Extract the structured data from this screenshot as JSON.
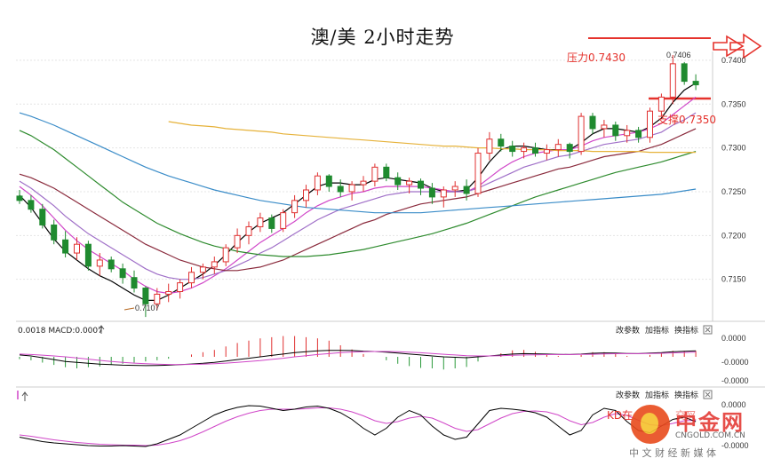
{
  "chart_data": {
    "type": "candlestick",
    "title": "澳/美 2小时走势",
    "price_axis": {
      "ticks": [
        "0.7400",
        "0.7350",
        "0.7300",
        "0.7250",
        "0.7200",
        "0.7150"
      ],
      "range": [
        0.7095,
        0.7415
      ]
    },
    "annotations": {
      "resistance_label": "压力0.7430",
      "support_label": "支撑0.7350",
      "high_label": "0.7406",
      "low_label": "0.7107"
    },
    "candles": [
      [
        0.7245,
        0.7252,
        0.7236,
        0.724
      ],
      [
        0.724,
        0.7246,
        0.7226,
        0.723
      ],
      [
        0.723,
        0.7236,
        0.7208,
        0.7212
      ],
      [
        0.7212,
        0.7218,
        0.719,
        0.7195
      ],
      [
        0.7195,
        0.7205,
        0.7175,
        0.718
      ],
      [
        0.718,
        0.7198,
        0.7172,
        0.719
      ],
      [
        0.719,
        0.7194,
        0.716,
        0.7165
      ],
      [
        0.7165,
        0.718,
        0.7154,
        0.7172
      ],
      [
        0.7172,
        0.7176,
        0.7158,
        0.7162
      ],
      [
        0.7162,
        0.7168,
        0.7145,
        0.7152
      ],
      [
        0.7152,
        0.716,
        0.7135,
        0.714
      ],
      [
        0.714,
        0.7142,
        0.7107,
        0.7122
      ],
      [
        0.7122,
        0.714,
        0.7115,
        0.7133
      ],
      [
        0.7133,
        0.7145,
        0.7124,
        0.7136
      ],
      [
        0.7136,
        0.715,
        0.7128,
        0.7146
      ],
      [
        0.7146,
        0.7164,
        0.714,
        0.7158
      ],
      [
        0.7158,
        0.7168,
        0.715,
        0.7164
      ],
      [
        0.7164,
        0.7176,
        0.7156,
        0.717
      ],
      [
        0.717,
        0.719,
        0.7165,
        0.7186
      ],
      [
        0.7186,
        0.7208,
        0.718,
        0.72
      ],
      [
        0.72,
        0.7216,
        0.719,
        0.721
      ],
      [
        0.721,
        0.7226,
        0.7204,
        0.722
      ],
      [
        0.722,
        0.7224,
        0.7203,
        0.7208
      ],
      [
        0.7208,
        0.723,
        0.7204,
        0.7226
      ],
      [
        0.7226,
        0.7246,
        0.722,
        0.724
      ],
      [
        0.724,
        0.7258,
        0.7232,
        0.7252
      ],
      [
        0.7252,
        0.7272,
        0.7246,
        0.7268
      ],
      [
        0.7268,
        0.727,
        0.725,
        0.7256
      ],
      [
        0.7256,
        0.7264,
        0.7244,
        0.725
      ],
      [
        0.725,
        0.7262,
        0.724,
        0.7258
      ],
      [
        0.7258,
        0.7268,
        0.725,
        0.7262
      ],
      [
        0.7262,
        0.7282,
        0.7256,
        0.7278
      ],
      [
        0.7278,
        0.7282,
        0.7262,
        0.7266
      ],
      [
        0.7266,
        0.7272,
        0.7252,
        0.7258
      ],
      [
        0.7258,
        0.7266,
        0.7248,
        0.7262
      ],
      [
        0.7262,
        0.7265,
        0.7246,
        0.7254
      ],
      [
        0.7254,
        0.726,
        0.7236,
        0.7244
      ],
      [
        0.7244,
        0.7256,
        0.7232,
        0.7252
      ],
      [
        0.7252,
        0.7262,
        0.7244,
        0.7256
      ],
      [
        0.7256,
        0.7264,
        0.724,
        0.7248
      ],
      [
        0.7248,
        0.73,
        0.7244,
        0.7294
      ],
      [
        0.7294,
        0.7318,
        0.7286,
        0.731
      ],
      [
        0.731,
        0.7316,
        0.7296,
        0.7302
      ],
      [
        0.7302,
        0.7308,
        0.729,
        0.7296
      ],
      [
        0.7296,
        0.7306,
        0.7288,
        0.73
      ],
      [
        0.73,
        0.7306,
        0.729,
        0.7294
      ],
      [
        0.7294,
        0.7304,
        0.7286,
        0.7298
      ],
      [
        0.7298,
        0.731,
        0.729,
        0.7304
      ],
      [
        0.7304,
        0.7306,
        0.7288,
        0.7296
      ],
      [
        0.7296,
        0.734,
        0.7292,
        0.7336
      ],
      [
        0.7336,
        0.734,
        0.7316,
        0.7322
      ],
      [
        0.7322,
        0.7332,
        0.7312,
        0.7326
      ],
      [
        0.7326,
        0.733,
        0.7308,
        0.7314
      ],
      [
        0.7314,
        0.7326,
        0.7306,
        0.732
      ],
      [
        0.732,
        0.7324,
        0.7306,
        0.7312
      ],
      [
        0.7312,
        0.7346,
        0.7306,
        0.7342
      ],
      [
        0.7342,
        0.7362,
        0.7336,
        0.7358
      ],
      [
        0.7358,
        0.7406,
        0.735,
        0.7396
      ],
      [
        0.7396,
        0.7398,
        0.7372,
        0.7376
      ],
      [
        0.7376,
        0.7384,
        0.7366,
        0.7372
      ]
    ],
    "ma_series": [
      {
        "color": "#000000",
        "values": [
          0.7246,
          0.7232,
          0.7214,
          0.7196,
          0.7182,
          0.7172,
          0.7162,
          0.7154,
          0.7148,
          0.714,
          0.7132,
          0.7126,
          0.7126,
          0.7132,
          0.714,
          0.7148,
          0.7156,
          0.7166,
          0.7178,
          0.7192,
          0.7204,
          0.7214,
          0.722,
          0.7226,
          0.7236,
          0.7246,
          0.7256,
          0.726,
          0.726,
          0.7258,
          0.7258,
          0.7264,
          0.7266,
          0.7264,
          0.7262,
          0.726,
          0.7254,
          0.725,
          0.725,
          0.7252,
          0.7266,
          0.7284,
          0.7298,
          0.7302,
          0.7302,
          0.73,
          0.7298,
          0.7298,
          0.7298,
          0.7306,
          0.7316,
          0.7322,
          0.7322,
          0.732,
          0.7318,
          0.7324,
          0.7334,
          0.7352,
          0.7366,
          0.7374
        ]
      },
      {
        "color": "#d046c8",
        "values": [
          0.7256,
          0.7246,
          0.7234,
          0.722,
          0.7206,
          0.7194,
          0.7184,
          0.7176,
          0.7168,
          0.716,
          0.715,
          0.7142,
          0.7136,
          0.7134,
          0.7136,
          0.714,
          0.7146,
          0.7154,
          0.7162,
          0.7172,
          0.7182,
          0.7192,
          0.72,
          0.7208,
          0.7216,
          0.7226,
          0.7234,
          0.724,
          0.7244,
          0.7248,
          0.725,
          0.7254,
          0.7256,
          0.7256,
          0.7256,
          0.7256,
          0.7254,
          0.7252,
          0.725,
          0.725,
          0.7256,
          0.7266,
          0.7276,
          0.7284,
          0.729,
          0.7294,
          0.7296,
          0.7298,
          0.7298,
          0.7302,
          0.7308,
          0.7312,
          0.7314,
          0.7316,
          0.7318,
          0.7322,
          0.7328,
          0.7338,
          0.7348,
          0.7358
        ]
      },
      {
        "color": "#a070c8",
        "values": [
          0.7262,
          0.7254,
          0.7244,
          0.7234,
          0.7222,
          0.7212,
          0.7202,
          0.7194,
          0.7186,
          0.7178,
          0.717,
          0.7162,
          0.7156,
          0.7152,
          0.715,
          0.715,
          0.7152,
          0.7156,
          0.716,
          0.7166,
          0.7172,
          0.718,
          0.7186,
          0.7194,
          0.7202,
          0.721,
          0.7218,
          0.7224,
          0.723,
          0.7234,
          0.7238,
          0.7242,
          0.7246,
          0.7248,
          0.725,
          0.725,
          0.725,
          0.725,
          0.725,
          0.725,
          0.7254,
          0.726,
          0.7266,
          0.7272,
          0.7278,
          0.7282,
          0.7286,
          0.729,
          0.7292,
          0.7296,
          0.73,
          0.7304,
          0.7306,
          0.7308,
          0.731,
          0.7314,
          0.7318,
          0.7326,
          0.7332,
          0.734
        ]
      },
      {
        "color": "#8a2a3c",
        "values": [
          0.727,
          0.7266,
          0.726,
          0.7254,
          0.7246,
          0.7238,
          0.723,
          0.7222,
          0.7214,
          0.7206,
          0.7198,
          0.719,
          0.7184,
          0.7178,
          0.7172,
          0.7168,
          0.7164,
          0.7162,
          0.716,
          0.716,
          0.7162,
          0.7164,
          0.7168,
          0.7172,
          0.7178,
          0.7184,
          0.719,
          0.7196,
          0.7202,
          0.7208,
          0.7214,
          0.7218,
          0.7224,
          0.7228,
          0.7232,
          0.7236,
          0.7238,
          0.724,
          0.7242,
          0.7244,
          0.7248,
          0.7252,
          0.7256,
          0.726,
          0.7264,
          0.7268,
          0.7272,
          0.7276,
          0.7278,
          0.7282,
          0.7286,
          0.729,
          0.7292,
          0.7294,
          0.7296,
          0.73,
          0.7304,
          0.731,
          0.7316,
          0.7322
        ]
      },
      {
        "color": "#2e8b2e",
        "values": [
          0.732,
          0.7314,
          0.7306,
          0.7298,
          0.7288,
          0.7278,
          0.7268,
          0.7258,
          0.7248,
          0.7238,
          0.723,
          0.7222,
          0.7214,
          0.7208,
          0.7202,
          0.7197,
          0.7192,
          0.7188,
          0.7185,
          0.7182,
          0.718,
          0.7178,
          0.7177,
          0.7176,
          0.7176,
          0.7176,
          0.7177,
          0.7178,
          0.718,
          0.7182,
          0.7184,
          0.7187,
          0.719,
          0.7193,
          0.7196,
          0.7199,
          0.7202,
          0.7206,
          0.721,
          0.7214,
          0.7219,
          0.7224,
          0.7229,
          0.7234,
          0.7239,
          0.7244,
          0.7248,
          0.7252,
          0.7256,
          0.726,
          0.7264,
          0.7268,
          0.7272,
          0.7275,
          0.7278,
          0.7281,
          0.7284,
          0.7288,
          0.7292,
          0.7296
        ]
      },
      {
        "color": "#3a8cc8",
        "values": [
          0.734,
          0.7336,
          0.7331,
          0.7326,
          0.732,
          0.7314,
          0.7308,
          0.7302,
          0.7296,
          0.729,
          0.7284,
          0.7278,
          0.7273,
          0.7268,
          0.7264,
          0.726,
          0.7256,
          0.7252,
          0.7249,
          0.7246,
          0.7243,
          0.724,
          0.7238,
          0.7236,
          0.7234,
          0.7232,
          0.7231,
          0.723,
          0.7229,
          0.7228,
          0.7227,
          0.7226,
          0.7226,
          0.7226,
          0.7226,
          0.7226,
          0.7227,
          0.7228,
          0.7229,
          0.723,
          0.7231,
          0.7232,
          0.7233,
          0.7234,
          0.7235,
          0.7236,
          0.7237,
          0.7238,
          0.7239,
          0.724,
          0.7241,
          0.7242,
          0.7243,
          0.7244,
          0.7245,
          0.7246,
          0.7247,
          0.7249,
          0.7251,
          0.7253
        ]
      },
      {
        "color": "#e6b23a",
        "start": 13,
        "values": [
          0.733,
          0.7328,
          0.7326,
          0.7325,
          0.7324,
          0.7322,
          0.7321,
          0.732,
          0.7319,
          0.7318,
          0.7316,
          0.7315,
          0.7314,
          0.7313,
          0.7312,
          0.7311,
          0.731,
          0.7309,
          0.7308,
          0.7307,
          0.7306,
          0.7305,
          0.7304,
          0.7303,
          0.7302,
          0.7302,
          0.7301,
          0.73,
          0.73,
          0.7299,
          0.7299,
          0.7298,
          0.7298,
          0.7298,
          0.7297,
          0.7297,
          0.7297,
          0.7296,
          0.7296,
          0.7296,
          0.7296,
          0.7296,
          0.7295,
          0.7295,
          0.7295,
          0.7295,
          0.7295
        ]
      }
    ],
    "macd_panel": {
      "header": "0.0018 MACD:0.0007",
      "ticks": [
        "0.0000",
        "-0.0000",
        "-0.0000"
      ],
      "links": [
        "改参数",
        "加指标",
        "换指标"
      ],
      "dif": [
        0.2,
        0.1,
        -0.1,
        -0.3,
        -0.5,
        -0.6,
        -0.7,
        -0.8,
        -0.85,
        -0.9,
        -0.92,
        -0.95,
        -0.93,
        -0.9,
        -0.85,
        -0.78,
        -0.7,
        -0.6,
        -0.45,
        -0.3,
        -0.15,
        0.0,
        0.15,
        0.3,
        0.45,
        0.55,
        0.65,
        0.7,
        0.7,
        0.68,
        0.62,
        0.58,
        0.5,
        0.4,
        0.3,
        0.2,
        0.1,
        0.0,
        -0.05,
        -0.1,
        0.0,
        0.1,
        0.2,
        0.3,
        0.35,
        0.33,
        0.3,
        0.27,
        0.25,
        0.3,
        0.38,
        0.42,
        0.4,
        0.37,
        0.35,
        0.4,
        0.45,
        0.55,
        0.6,
        0.65
      ],
      "dea": [
        0.3,
        0.25,
        0.18,
        0.1,
        0.0,
        -0.12,
        -0.25,
        -0.38,
        -0.5,
        -0.6,
        -0.68,
        -0.75,
        -0.8,
        -0.83,
        -0.84,
        -0.82,
        -0.79,
        -0.74,
        -0.68,
        -0.6,
        -0.5,
        -0.4,
        -0.28,
        -0.15,
        0.0,
        0.12,
        0.25,
        0.35,
        0.45,
        0.52,
        0.56,
        0.58,
        0.58,
        0.55,
        0.5,
        0.44,
        0.36,
        0.28,
        0.2,
        0.12,
        0.1,
        0.1,
        0.12,
        0.16,
        0.2,
        0.22,
        0.24,
        0.25,
        0.25,
        0.26,
        0.28,
        0.32,
        0.34,
        0.35,
        0.35,
        0.36,
        0.38,
        0.42,
        0.47,
        0.52
      ],
      "hist": [
        -0.1,
        -0.15,
        -0.25,
        -0.35,
        -0.45,
        -0.5,
        -0.45,
        -0.42,
        -0.35,
        -0.3,
        -0.25,
        -0.2,
        -0.15,
        -0.08,
        0.0,
        0.1,
        0.2,
        0.3,
        0.45,
        0.6,
        0.7,
        0.8,
        0.85,
        0.9,
        0.9,
        0.85,
        0.8,
        0.7,
        0.5,
        0.32,
        0.12,
        0.0,
        -0.15,
        -0.3,
        -0.4,
        -0.48,
        -0.5,
        -0.55,
        -0.5,
        -0.44,
        -0.2,
        0.0,
        0.15,
        0.28,
        0.3,
        0.22,
        0.12,
        0.04,
        0.0,
        0.08,
        0.2,
        0.2,
        0.12,
        0.04,
        0.0,
        0.08,
        0.14,
        0.26,
        0.26,
        0.26
      ]
    },
    "kd_panel": {
      "ticks": [
        "0.0000",
        "-0.0000"
      ],
      "links": [
        "改参数",
        "加指标",
        "换指标"
      ],
      "k": [
        0.25,
        0.2,
        0.15,
        0.12,
        0.1,
        0.08,
        0.06,
        0.05,
        0.05,
        0.06,
        0.05,
        0.04,
        0.1,
        0.2,
        0.3,
        0.45,
        0.6,
        0.75,
        0.85,
        0.92,
        0.96,
        0.95,
        0.9,
        0.85,
        0.88,
        0.93,
        0.95,
        0.9,
        0.8,
        0.65,
        0.45,
        0.3,
        0.45,
        0.7,
        0.85,
        0.75,
        0.5,
        0.3,
        0.2,
        0.25,
        0.55,
        0.85,
        0.9,
        0.88,
        0.85,
        0.8,
        0.7,
        0.5,
        0.3,
        0.4,
        0.75,
        0.9,
        0.85,
        0.6,
        0.4,
        0.35,
        0.5,
        0.65,
        0.7,
        0.6
      ],
      "d": [
        0.3,
        0.27,
        0.23,
        0.19,
        0.16,
        0.13,
        0.11,
        0.09,
        0.08,
        0.07,
        0.07,
        0.06,
        0.07,
        0.11,
        0.17,
        0.26,
        0.37,
        0.49,
        0.61,
        0.71,
        0.79,
        0.85,
        0.88,
        0.88,
        0.88,
        0.89,
        0.91,
        0.91,
        0.88,
        0.82,
        0.73,
        0.62,
        0.56,
        0.6,
        0.68,
        0.72,
        0.68,
        0.57,
        0.45,
        0.38,
        0.42,
        0.55,
        0.68,
        0.78,
        0.83,
        0.84,
        0.82,
        0.75,
        0.62,
        0.53,
        0.58,
        0.7,
        0.78,
        0.74,
        0.63,
        0.53,
        0.51,
        0.56,
        0.62,
        0.63
      ]
    }
  },
  "kd_text": "KD在",
  "kd_tail": "交叉",
  "watermark": {
    "logo": "中金网",
    "url": "CNGOLD.COM.CN",
    "tagline": "中 文 财 经 新 媒 体"
  }
}
